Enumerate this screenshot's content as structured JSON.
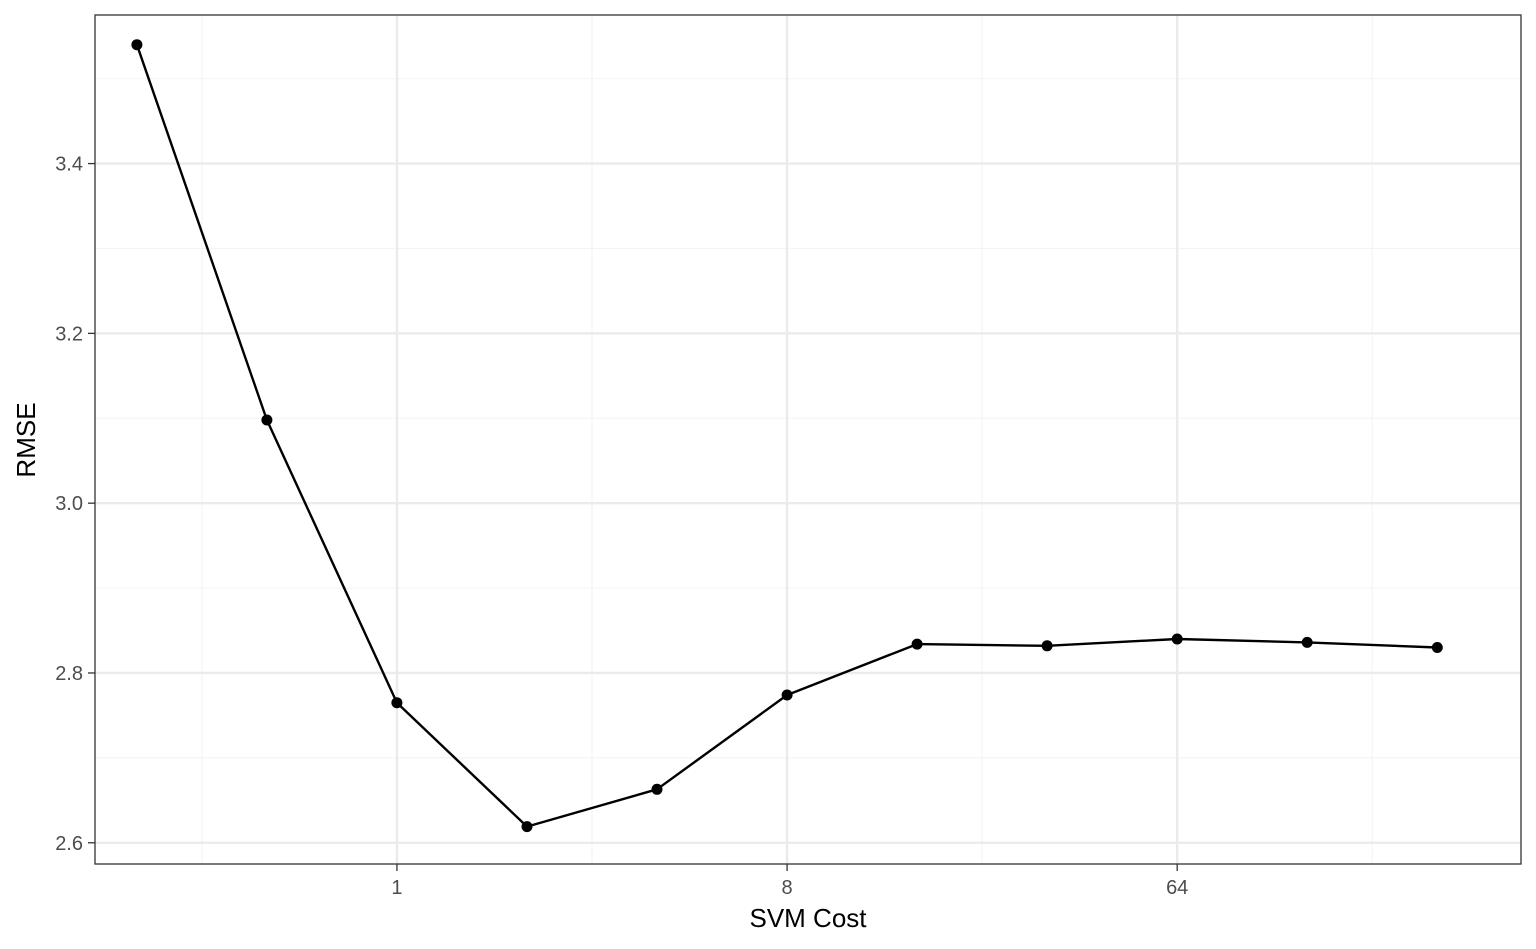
{
  "chart_data": {
    "type": "line",
    "title": "",
    "xlabel": "SVM Cost",
    "ylabel": "RMSE",
    "x_scale": "log2",
    "x": [
      0.25,
      0.5,
      1,
      2,
      4,
      8,
      16,
      32,
      64,
      128,
      256
    ],
    "series": [
      {
        "values": [
          3.54,
          3.098,
          2.765,
          2.619,
          2.663,
          2.774,
          2.834,
          2.832,
          2.84,
          2.836,
          2.83
        ]
      }
    ],
    "xlim": [
      0.2,
      400
    ],
    "ylim": [
      2.575,
      3.575
    ],
    "x_ticks": [
      {
        "value": 1,
        "label": "1"
      },
      {
        "value": 8,
        "label": "8"
      },
      {
        "value": 64,
        "label": "64"
      }
    ],
    "y_ticks": [
      {
        "value": 2.6,
        "label": "2.6"
      },
      {
        "value": 2.8,
        "label": "2.8"
      },
      {
        "value": 3.0,
        "label": "3.0"
      },
      {
        "value": 3.2,
        "label": "3.2"
      },
      {
        "value": 3.4,
        "label": "3.4"
      }
    ],
    "x_minor_ticks": [
      0.353553,
      2.828427,
      22.627417,
      181.019336
    ],
    "y_minor_ticks": [
      2.7,
      2.9,
      3.1,
      3.3,
      3.5
    ],
    "grid": true,
    "legend": "none",
    "colors": {
      "line": "#000000",
      "point": "#000000",
      "grid_major": "#ebebeb",
      "grid_minor": "#f4f4f4",
      "panel_border": "#333333",
      "tick_label": "#4d4d4d"
    }
  }
}
